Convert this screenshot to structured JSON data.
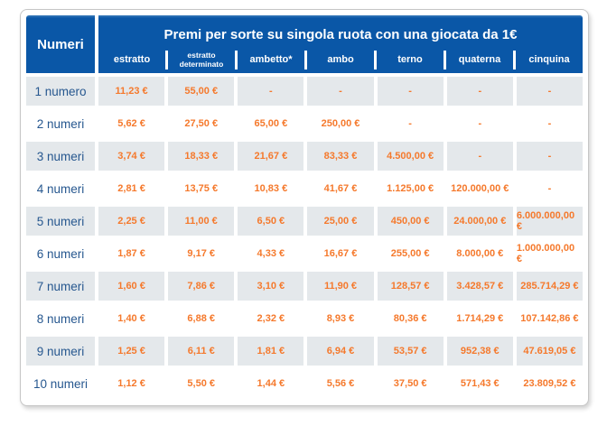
{
  "chart_data": {
    "type": "table",
    "title": "Premi per sorte su singola ruota con una giocata da 1€",
    "corner_header": "Numeri",
    "columns": [
      "estratto",
      "estratto determinato",
      "ambetto*",
      "ambo",
      "terno",
      "quaterna",
      "cinquina"
    ],
    "rows": [
      {
        "label": "1 numero",
        "values": [
          "11,23 €",
          "55,00 €",
          "-",
          "-",
          "-",
          "-",
          "-"
        ]
      },
      {
        "label": "2 numeri",
        "values": [
          "5,62 €",
          "27,50 €",
          "65,00 €",
          "250,00 €",
          "-",
          "-",
          "-"
        ]
      },
      {
        "label": "3 numeri",
        "values": [
          "3,74 €",
          "18,33 €",
          "21,67 €",
          "83,33 €",
          "4.500,00 €",
          "-",
          "-"
        ]
      },
      {
        "label": "4 numeri",
        "values": [
          "2,81 €",
          "13,75 €",
          "10,83 €",
          "41,67 €",
          "1.125,00 €",
          "120.000,00 €",
          "-"
        ]
      },
      {
        "label": "5 numeri",
        "values": [
          "2,25 €",
          "11,00 €",
          "6,50 €",
          "25,00 €",
          "450,00 €",
          "24.000,00 €",
          "6.000.000,00 €"
        ]
      },
      {
        "label": "6 numeri",
        "values": [
          "1,87 €",
          "9,17 €",
          "4,33 €",
          "16,67 €",
          "255,00 €",
          "8.000,00 €",
          "1.000.000,00 €"
        ]
      },
      {
        "label": "7 numeri",
        "values": [
          "1,60 €",
          "7,86 €",
          "3,10 €",
          "11,90 €",
          "128,57 €",
          "3.428,57 €",
          "285.714,29 €"
        ]
      },
      {
        "label": "8 numeri",
        "values": [
          "1,40 €",
          "6,88 €",
          "2,32 €",
          "8,93 €",
          "80,36 €",
          "1.714,29 €",
          "107.142,86 €"
        ]
      },
      {
        "label": "9 numeri",
        "values": [
          "1,25 €",
          "6,11 €",
          "1,81 €",
          "6,94 €",
          "53,57 €",
          "952,38 €",
          "47.619,05 €"
        ]
      },
      {
        "label": "10 numeri",
        "values": [
          "1,12 €",
          "5,50 €",
          "1,44 €",
          "5,56 €",
          "37,50 €",
          "571,43 €",
          "23.809,52 €"
        ]
      }
    ],
    "layout": {
      "shaded_row_indices": [
        0,
        2,
        4,
        6,
        8
      ]
    }
  },
  "colors": {
    "header_blue": "#0a57a7",
    "value_orange": "#f5792c",
    "row_shaded": "#e4e8eb",
    "label_blue": "#26578f",
    "panel_border": "#c6c6c6"
  }
}
